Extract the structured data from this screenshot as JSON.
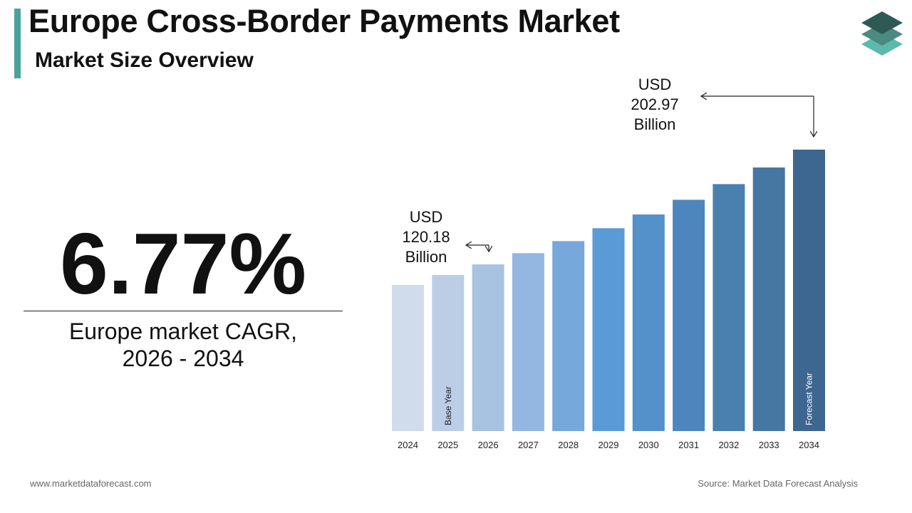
{
  "header": {
    "title": "Europe Cross-Border Payments Market",
    "subtitle": "Market Size Overview"
  },
  "cagr": {
    "value": "6.77%",
    "caption_line1": "Europe market CAGR,",
    "caption_line2": "2026 - 2034"
  },
  "chart_data": {
    "type": "bar",
    "categories": [
      "2024",
      "2025",
      "2026",
      "2027",
      "2028",
      "2029",
      "2030",
      "2031",
      "2032",
      "2033",
      "2034"
    ],
    "values": [
      105.4,
      112.6,
      120.18,
      128.3,
      137.0,
      146.3,
      156.2,
      166.8,
      178.1,
      190.1,
      202.97
    ],
    "ylim": [
      0,
      202.97
    ],
    "colors": [
      "#d0dcec",
      "#bccde6",
      "#a8c2e2",
      "#93b7e0",
      "#77a8dc",
      "#5b9bd5",
      "#5490ca",
      "#4d86bc",
      "#4a80b0",
      "#4677a3",
      "#3d6690"
    ],
    "bar_labels": [
      {
        "index": 1,
        "text": "Base Year"
      },
      {
        "index": 10,
        "text": "Forecast Year"
      }
    ],
    "callouts": [
      {
        "index": 2,
        "line1": "USD",
        "line2": "120.18",
        "line3": "Billion"
      },
      {
        "index": 10,
        "line1": "USD",
        "line2": "202.97",
        "line3": "Billion"
      }
    ]
  },
  "footer": {
    "website": "www.marketdataforecast.com",
    "source": "Source: Market Data Forecast Analysis"
  },
  "logo": {
    "icon": "layers-icon",
    "colors": [
      "#2d5a55",
      "#4a8a80",
      "#5fb8ac"
    ]
  }
}
